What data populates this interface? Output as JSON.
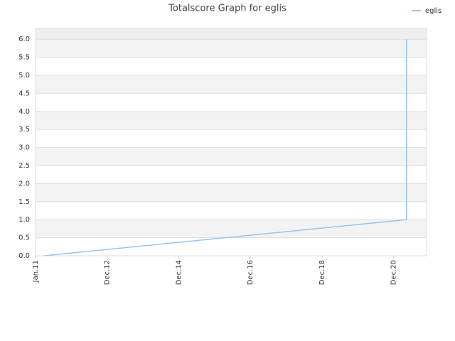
{
  "chart_data": {
    "type": "line",
    "title": "Totalscore Graph for eglis",
    "series": [
      {
        "name": "eglis",
        "color": "#99c4ef",
        "x": [
          0.12,
          5.18,
          5.18
        ],
        "values": [
          0,
          1.0,
          6.0
        ]
      }
    ],
    "xlim": [
      0,
      5.46
    ],
    "xticks": [
      {
        "value": 0,
        "label": "Jan.11"
      },
      {
        "value": 1,
        "label": "Dec.12"
      },
      {
        "value": 2,
        "label": "Dec.14"
      },
      {
        "value": 3,
        "label": "Dec.16"
      },
      {
        "value": 4,
        "label": "Dec.18"
      },
      {
        "value": 5,
        "label": "Dec.20"
      }
    ],
    "ylim": [
      0,
      6.3
    ],
    "yticks": [
      {
        "value": 0,
        "label": "0.0"
      },
      0.5,
      {
        "value": 1,
        "label": "1.0"
      },
      1.5,
      {
        "value": 2,
        "label": "2.0"
      },
      2.5,
      {
        "value": 3,
        "label": "3.0"
      },
      3.5,
      {
        "value": 4,
        "label": "4.0"
      },
      4.5,
      {
        "value": 5,
        "label": "5.0"
      },
      5.5,
      {
        "value": 6,
        "label": "6.0"
      }
    ],
    "grid": true,
    "legend": "top-right"
  }
}
